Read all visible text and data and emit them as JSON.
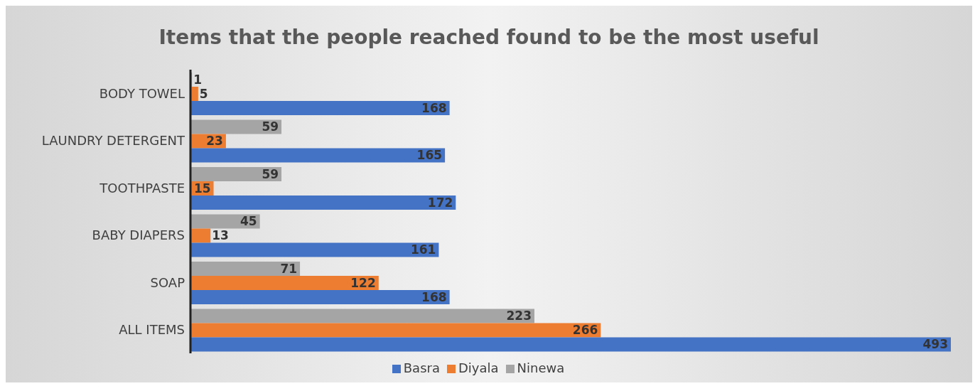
{
  "chart_data": {
    "type": "bar",
    "orientation": "horizontal",
    "title": "Items that the people reached found to be the most useful",
    "categories": [
      "BODY TOWEL",
      "LAUNDRY DETERGENT",
      "TOOTHPASTE",
      "BABY DIAPERS",
      "SOAP",
      "ALL ITEMS"
    ],
    "series": [
      {
        "name": "Ninewa",
        "color": "#a5a5a5",
        "values": [
          1,
          59,
          59,
          45,
          71,
          223
        ]
      },
      {
        "name": "Diyala",
        "color": "#ed7d31",
        "values": [
          5,
          23,
          15,
          13,
          122,
          266
        ]
      },
      {
        "name": "Basra",
        "color": "#4472c4",
        "values": [
          168,
          165,
          172,
          161,
          168,
          493
        ]
      }
    ],
    "tick_labels": "y",
    "legend": "bottom",
    "data_labels": true
  }
}
